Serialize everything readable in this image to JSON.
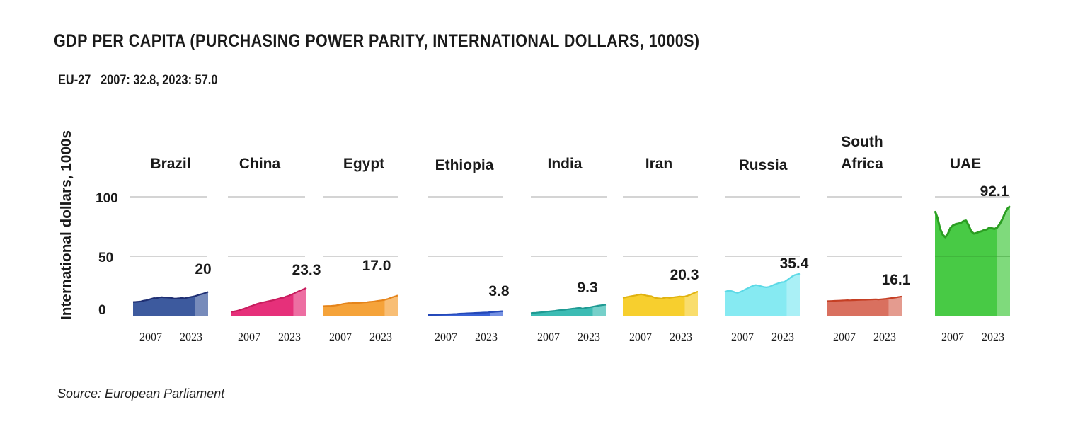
{
  "title": "GDP PER CAPITA (PURCHASING POWER PARITY, INTERNATIONAL DOLLARS, 1000S)",
  "subtitle": {
    "label": "EU-27",
    "text": "2007: 32.8, 2023: 57.0"
  },
  "source": "Source: European Parliament",
  "chart_data": {
    "type": "area",
    "title": "GDP PER CAPITA (PURCHASING POWER PARITY, INTERNATIONAL DOLLARS, 1000S)",
    "ylabel": "International dollars, 1000s",
    "ylim": [
      0,
      100
    ],
    "yticks": [
      0,
      50,
      100
    ],
    "grid": true,
    "x": [
      2000,
      2001,
      2002,
      2003,
      2004,
      2005,
      2006,
      2007,
      2008,
      2009,
      2010,
      2011,
      2012,
      2013,
      2014,
      2015,
      2016,
      2017,
      2018,
      2019,
      2020,
      2021,
      2022,
      2023,
      2024,
      2025,
      2026,
      2027,
      2028,
      2029
    ],
    "x_tick_labels": [
      "2007",
      "2023"
    ],
    "projected_from": 2024,
    "series": [
      {
        "name": "Brazil",
        "color": "#3d5a9e",
        "line_color": "#1f2f73",
        "end_label": "20",
        "values": [
          11.5,
          11.6,
          11.8,
          12.0,
          12.6,
          13.0,
          13.5,
          14.2,
          14.8,
          14.7,
          15.3,
          15.6,
          15.4,
          15.3,
          15.2,
          14.8,
          14.4,
          14.5,
          14.7,
          14.9,
          14.6,
          15.2,
          15.6,
          16.0,
          16.5,
          17.2,
          17.9,
          18.5,
          19.2,
          20.0
        ]
      },
      {
        "name": "China",
        "color": "#e6307a",
        "line_color": "#c81d5e",
        "end_label": "23.3",
        "values": [
          3.2,
          3.6,
          4.0,
          4.6,
          5.3,
          6.0,
          6.8,
          7.7,
          8.4,
          9.2,
          10.0,
          10.6,
          11.1,
          11.6,
          12.1,
          12.5,
          13.0,
          13.6,
          14.2,
          14.8,
          15.0,
          16.0,
          16.6,
          17.6,
          18.5,
          19.6,
          20.6,
          21.5,
          22.4,
          23.3
        ]
      },
      {
        "name": "Egypt",
        "color": "#f5a33a",
        "line_color": "#e5841a",
        "end_label": "17.0",
        "values": [
          8.0,
          8.1,
          8.2,
          8.2,
          8.4,
          8.6,
          9.0,
          9.5,
          10.0,
          10.3,
          10.6,
          10.6,
          10.7,
          10.7,
          10.8,
          11.0,
          11.2,
          11.3,
          11.6,
          11.8,
          12.0,
          12.4,
          12.7,
          13.0,
          13.4,
          14.0,
          14.8,
          15.6,
          16.3,
          17.0
        ]
      },
      {
        "name": "Ethiopia",
        "color": "#3a62d6",
        "line_color": "#2448b8",
        "end_label": "3.8",
        "values": [
          0.6,
          0.6,
          0.7,
          0.7,
          0.8,
          0.9,
          1.0,
          1.1,
          1.2,
          1.3,
          1.4,
          1.5,
          1.7,
          1.8,
          1.9,
          2.0,
          2.1,
          2.2,
          2.3,
          2.4,
          2.5,
          2.6,
          2.7,
          2.8,
          3.0,
          3.1,
          3.3,
          3.5,
          3.7,
          3.8
        ]
      },
      {
        "name": "India",
        "color": "#3cbcb4",
        "line_color": "#1f9a93",
        "end_label": "9.3",
        "values": [
          2.2,
          2.4,
          2.5,
          2.7,
          2.9,
          3.1,
          3.4,
          3.6,
          3.8,
          4.0,
          4.3,
          4.6,
          4.8,
          5.0,
          5.3,
          5.6,
          5.9,
          6.1,
          6.4,
          6.6,
          6.0,
          6.5,
          6.9,
          7.2,
          7.6,
          8.0,
          8.4,
          8.7,
          9.0,
          9.3
        ]
      },
      {
        "name": "Iran",
        "color": "#f7cf2e",
        "line_color": "#e0b20f",
        "end_label": "20.3",
        "values": [
          15.0,
          15.4,
          15.9,
          16.3,
          16.7,
          17.1,
          17.6,
          18.0,
          17.6,
          17.0,
          16.6,
          16.4,
          15.4,
          14.8,
          14.6,
          14.4,
          15.0,
          15.4,
          15.0,
          15.3,
          15.6,
          15.9,
          16.2,
          16.0,
          16.2,
          16.8,
          17.6,
          18.6,
          19.5,
          20.3
        ]
      },
      {
        "name": "Russia",
        "color": "#86eaf2",
        "line_color": "#5cd9e6",
        "end_label": "35.4",
        "values": [
          20.0,
          20.8,
          21.0,
          20.5,
          19.6,
          19.2,
          20.0,
          21.0,
          22.2,
          23.2,
          24.3,
          25.2,
          25.8,
          25.4,
          24.8,
          24.2,
          23.9,
          24.2,
          25.1,
          26.0,
          26.8,
          27.6,
          28.2,
          28.4,
          29.8,
          31.4,
          33.0,
          34.2,
          34.8,
          35.4
        ]
      },
      {
        "name": "South Africa",
        "color": "#d9705f",
        "line_color": "#c53f24",
        "end_label": "16.1",
        "values": [
          12.2,
          12.3,
          12.4,
          12.5,
          12.6,
          12.7,
          12.8,
          12.9,
          13.0,
          12.9,
          13.0,
          13.1,
          13.2,
          13.3,
          13.4,
          13.4,
          13.5,
          13.6,
          13.7,
          13.8,
          13.6,
          13.8,
          14.0,
          14.2,
          14.5,
          14.8,
          15.1,
          15.4,
          15.8,
          16.1
        ]
      },
      {
        "name": "UAE",
        "color": "#48ca45",
        "line_color": "#2b9e22",
        "end_label": "92.1",
        "values": [
          88.0,
          82.0,
          73.0,
          68.0,
          66.0,
          69.0,
          74.0,
          76.0,
          77.0,
          77.5,
          78.0,
          79.5,
          80.0,
          76.0,
          71.0,
          69.0,
          69.5,
          70.5,
          71.0,
          72.0,
          72.5,
          74.0,
          73.5,
          73.0,
          74.0,
          77.0,
          81.0,
          86.0,
          90.0,
          92.1
        ]
      }
    ]
  }
}
